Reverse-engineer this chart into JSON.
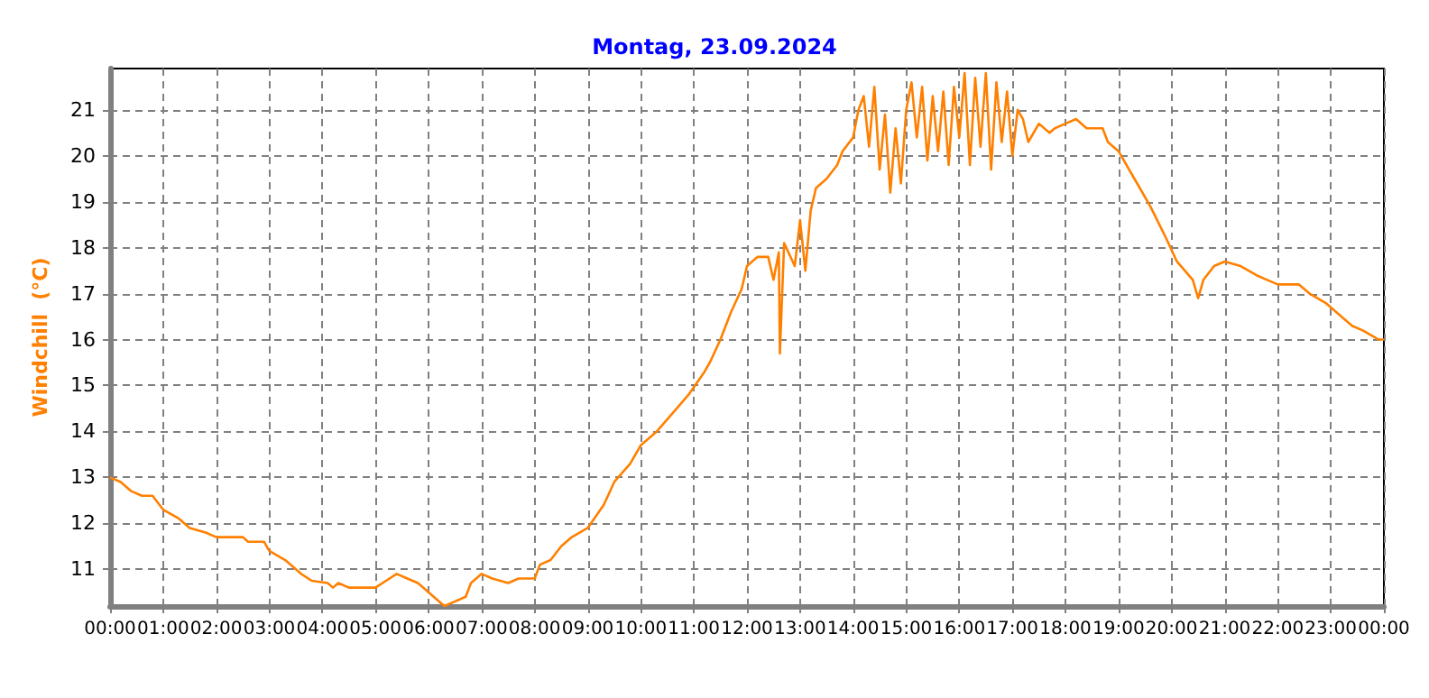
{
  "chart_data": {
    "type": "line",
    "title": "Montag, 23.09.2024",
    "ylabel": "Windchill  (°C)",
    "x": [
      0,
      0.2,
      0.4,
      0.6,
      0.8,
      1.0,
      1.3,
      1.5,
      1.8,
      2.0,
      2.5,
      2.6,
      2.9,
      3.0,
      3.3,
      3.6,
      3.8,
      4.1,
      4.2,
      4.3,
      4.5,
      5.0,
      5.2,
      5.4,
      5.6,
      5.8,
      6.0,
      6.2,
      6.3,
      6.5,
      6.7,
      6.8,
      7.0,
      7.2,
      7.5,
      7.7,
      8.0,
      8.1,
      8.3,
      8.5,
      8.7,
      9.0,
      9.3,
      9.5,
      9.8,
      10.0,
      10.3,
      10.6,
      10.9,
      11.2,
      11.3,
      11.5,
      11.7,
      11.9,
      12.0,
      12.2,
      12.4,
      12.5,
      12.6,
      12.62,
      12.7,
      12.9,
      13.0,
      13.1,
      13.2,
      13.3,
      13.5,
      13.7,
      13.8,
      14.0,
      14.1,
      14.2,
      14.3,
      14.4,
      14.5,
      14.6,
      14.7,
      14.8,
      14.9,
      15.0,
      15.1,
      15.2,
      15.3,
      15.4,
      15.5,
      15.6,
      15.7,
      15.8,
      15.9,
      16.0,
      16.1,
      16.2,
      16.3,
      16.4,
      16.5,
      16.6,
      16.7,
      16.8,
      16.9,
      17.0,
      17.1,
      17.2,
      17.3,
      17.5,
      17.7,
      17.8,
      18.0,
      18.2,
      18.4,
      18.7,
      18.8,
      19.0,
      19.3,
      19.6,
      19.9,
      20.1,
      20.4,
      20.5,
      20.6,
      20.8,
      21.0,
      21.3,
      21.6,
      21.8,
      22.0,
      22.4,
      22.6,
      22.9,
      23.1,
      23.4,
      23.6,
      23.9,
      24.0
    ],
    "series": [
      {
        "color": "#ff8000",
        "values": [
          13.0,
          12.9,
          12.7,
          12.6,
          12.6,
          12.3,
          12.1,
          11.9,
          11.8,
          11.7,
          11.7,
          11.6,
          11.6,
          11.4,
          11.2,
          10.9,
          10.75,
          10.7,
          10.6,
          10.7,
          10.6,
          10.6,
          10.75,
          10.9,
          10.8,
          10.7,
          10.5,
          10.3,
          10.2,
          10.3,
          10.4,
          10.7,
          10.9,
          10.8,
          10.7,
          10.8,
          10.8,
          11.1,
          11.2,
          11.5,
          11.7,
          11.9,
          12.4,
          12.9,
          13.3,
          13.7,
          14.0,
          14.4,
          14.8,
          15.3,
          15.5,
          16.0,
          16.6,
          17.1,
          17.6,
          17.8,
          17.8,
          17.3,
          17.9,
          15.7,
          18.1,
          17.6,
          18.6,
          17.5,
          18.8,
          19.3,
          19.5,
          19.8,
          20.1,
          20.4,
          21.0,
          21.3,
          20.2,
          21.5,
          19.7,
          20.9,
          19.2,
          20.6,
          19.4,
          21.0,
          21.6,
          20.4,
          21.5,
          19.9,
          21.3,
          20.1,
          21.4,
          19.8,
          21.5,
          20.4,
          21.8,
          19.8,
          21.7,
          20.2,
          21.8,
          19.7,
          21.6,
          20.3,
          21.4,
          20.0,
          21.0,
          20.8,
          20.3,
          20.7,
          20.5,
          20.6,
          20.7,
          20.8,
          20.6,
          20.6,
          20.3,
          20.1,
          19.5,
          18.9,
          18.2,
          17.7,
          17.3,
          16.9,
          17.3,
          17.6,
          17.7,
          17.6,
          17.4,
          17.3,
          17.2,
          17.2,
          17.0,
          16.8,
          16.6,
          16.3,
          16.2,
          16.0,
          16.0
        ]
      }
    ],
    "xlim": [
      0,
      24
    ],
    "xticks": [
      {
        "value": 0,
        "label": "00:00"
      },
      {
        "value": 1,
        "label": "01:00"
      },
      {
        "value": 2,
        "label": "02:00"
      },
      {
        "value": 3,
        "label": "03:00"
      },
      {
        "value": 4,
        "label": "04:00"
      },
      {
        "value": 5,
        "label": "05:00"
      },
      {
        "value": 6,
        "label": "06:00"
      },
      {
        "value": 7,
        "label": "07:00"
      },
      {
        "value": 8,
        "label": "08:00"
      },
      {
        "value": 9,
        "label": "09:00"
      },
      {
        "value": 10,
        "label": "10:00"
      },
      {
        "value": 11,
        "label": "11:00"
      },
      {
        "value": 12,
        "label": "12:00"
      },
      {
        "value": 13,
        "label": "13:00"
      },
      {
        "value": 14,
        "label": "14:00"
      },
      {
        "value": 15,
        "label": "15:00"
      },
      {
        "value": 16,
        "label": "16:00"
      },
      {
        "value": 17,
        "label": "17:00"
      },
      {
        "value": 18,
        "label": "18:00"
      },
      {
        "value": 19,
        "label": "19:00"
      },
      {
        "value": 20,
        "label": "20:00"
      },
      {
        "value": 21,
        "label": "21:00"
      },
      {
        "value": 22,
        "label": "22:00"
      },
      {
        "value": 23,
        "label": "23:00"
      },
      {
        "value": 24,
        "label": "00:00"
      }
    ],
    "ylim": [
      10.2,
      21.9
    ],
    "yticks": [
      11,
      12,
      13,
      14,
      15,
      16,
      17,
      18,
      19,
      20,
      21
    ],
    "grid": true,
    "marker": "none",
    "line_style": "solid"
  }
}
